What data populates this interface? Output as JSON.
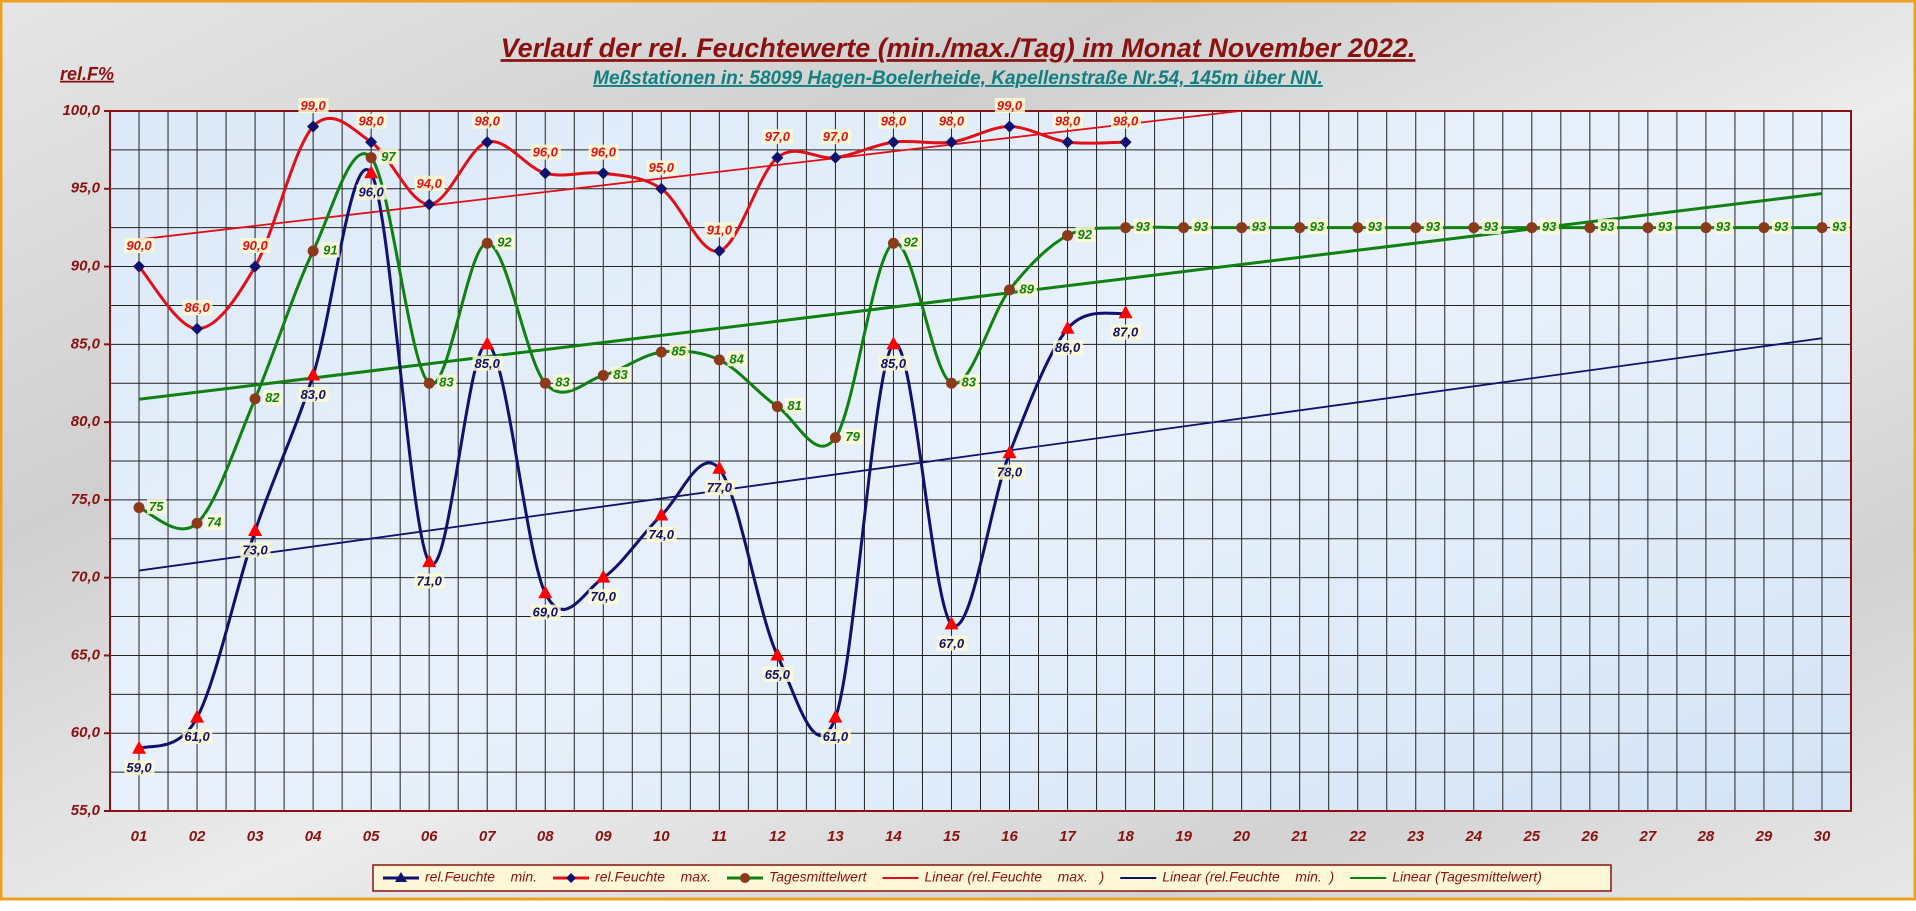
{
  "chart_data": {
    "type": "line",
    "title": "Verlauf der rel. Feuchtewerte (min./max./Tag) im Monat November 2022.",
    "subtitle": "Meßstationen in: 58099 Hagen-Boelerheide, Kapellenstraße Nr.54, 145m über NN.",
    "y_label": "rel.F%",
    "categories": [
      "01",
      "02",
      "03",
      "04",
      "05",
      "06",
      "07",
      "08",
      "09",
      "10",
      "11",
      "12",
      "13",
      "14",
      "15",
      "16",
      "17",
      "18",
      "19",
      "20",
      "21",
      "22",
      "23",
      "24",
      "25",
      "26",
      "27",
      "28",
      "29",
      "30"
    ],
    "ylim": [
      55,
      100
    ],
    "yticks": [
      {
        "value": 55,
        "label": "55,0"
      },
      {
        "value": 60,
        "label": "60,0"
      },
      {
        "value": 65,
        "label": "65,0"
      },
      {
        "value": 70,
        "label": "70,0"
      },
      {
        "value": 75,
        "label": "75,0"
      },
      {
        "value": 80,
        "label": "80,0"
      },
      {
        "value": 85,
        "label": "85,0"
      },
      {
        "value": 90,
        "label": "90,0"
      },
      {
        "value": 95,
        "label": "95,0"
      },
      {
        "value": 100,
        "label": "100,0"
      }
    ],
    "grid": true,
    "series": [
      {
        "name": "rel.Feuchte    min.",
        "color": "#10106e",
        "marker": "triangle",
        "marker_color": "#ff0000",
        "label_position": "below",
        "values": [
          59,
          61,
          73,
          83,
          96,
          71,
          85,
          69,
          70,
          74,
          77,
          65,
          61,
          85,
          67,
          78,
          86,
          87,
          null,
          null,
          null,
          null,
          null,
          null,
          null,
          null,
          null,
          null,
          null,
          null
        ],
        "value_labels": [
          "59,0",
          "61,0",
          "73,0",
          "83,0",
          "96,0",
          "71,0",
          "85,0",
          "69,0",
          "70,0",
          "74,0",
          "77,0",
          "65,0",
          "61,0",
          "85,0",
          "67,0",
          "78,0",
          "86,0",
          "87,0",
          null,
          null,
          null,
          null,
          null,
          null,
          null,
          null,
          null,
          null,
          null,
          null
        ],
        "trendline": {
          "name": "Linear (rel.Feuchte    min.  )",
          "color": "#10106e"
        }
      },
      {
        "name": "rel.Feuchte    max.",
        "color": "#e01018",
        "marker": "diamond",
        "marker_color": "#10106e",
        "label_position": "above",
        "values": [
          90,
          86,
          90,
          99,
          98,
          94,
          98,
          96,
          96,
          95,
          91,
          97,
          97,
          98,
          98,
          99,
          98,
          98,
          null,
          null,
          null,
          null,
          null,
          null,
          null,
          null,
          null,
          null,
          null,
          null
        ],
        "value_labels": [
          "90,0",
          "86,0",
          "90,0",
          "99,0",
          "98,0",
          "94,0",
          "98,0",
          "96,0",
          "96,0",
          "95,0",
          "91,0",
          "97,0",
          "97,0",
          "98,0",
          "98,0",
          "99,0",
          "98,0",
          "98,0",
          null,
          null,
          null,
          null,
          null,
          null,
          null,
          null,
          null,
          null,
          null,
          null
        ],
        "trendline": {
          "name": "Linear (rel.Feuchte    max.   )",
          "color": "#e01018"
        }
      },
      {
        "name": "Tagesmittelwert",
        "color": "#108010",
        "marker": "circle",
        "marker_color": "#8b3a1a",
        "label_position": "right",
        "values": [
          74.5,
          73.5,
          81.5,
          91,
          97,
          82.5,
          91.5,
          82.5,
          83,
          84.5,
          84,
          81,
          79,
          91.5,
          82.5,
          88.5,
          92,
          92.5,
          92.5,
          92.5,
          92.5,
          92.5,
          92.5,
          92.5,
          92.5,
          92.5,
          92.5,
          92.5,
          92.5,
          92.5
        ],
        "value_labels": [
          "75",
          "74",
          "82",
          "91",
          "97",
          "83",
          "92",
          "83",
          "83",
          "85",
          "84",
          "81",
          "79",
          "92",
          "83",
          "89",
          "92",
          "93",
          "93",
          "93",
          "93",
          "93",
          "93",
          "93",
          "93",
          "93",
          "93",
          "93",
          "93",
          "93"
        ],
        "trendline": {
          "name": "Linear (Tagesmittelwert)",
          "color": "#108010"
        }
      }
    ]
  }
}
